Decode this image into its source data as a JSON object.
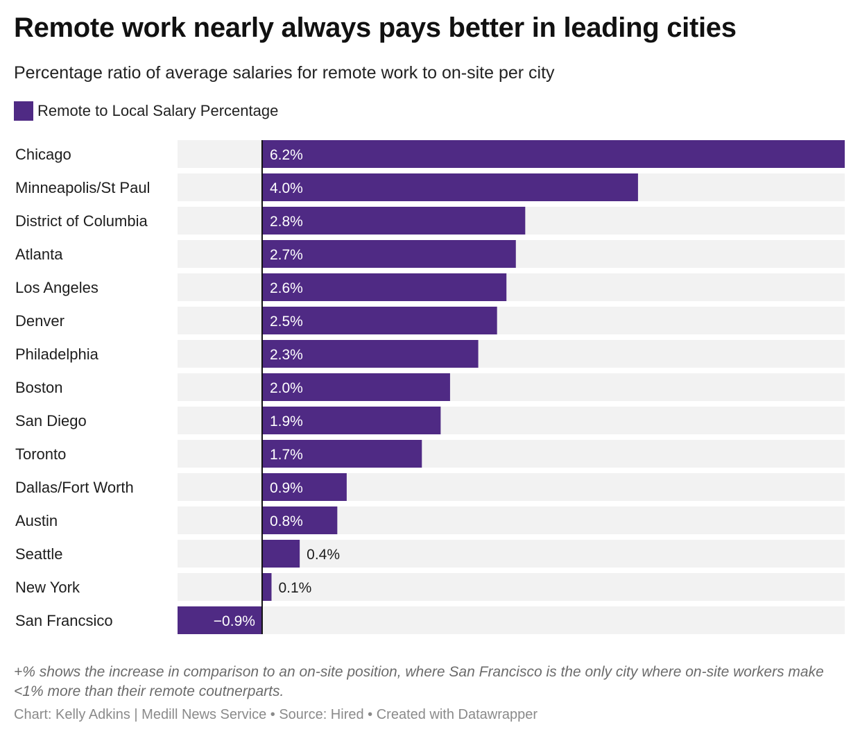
{
  "title": "Remote work nearly always pays better in leading cities",
  "subtitle": "Percentage ratio of average salaries for remote work to on-site per city",
  "colors": {
    "bar": "#4f2a84",
    "track": "#f2f2f2",
    "axis": "#111111"
  },
  "chart_data": {
    "type": "bar",
    "orientation": "horizontal",
    "legend": {
      "position": "top-left",
      "entries": [
        "Remote to Local Salary Percentage"
      ]
    },
    "categories": [
      "Chicago",
      "Minneapolis/St Paul",
      "District of Columbia",
      "Atlanta",
      "Los Angeles",
      "Denver",
      "Philadelphia",
      "Boston",
      "San Diego",
      "Toronto",
      "Dallas/Fort Worth",
      "Austin",
      "Seattle",
      "New York",
      "San Francsico"
    ],
    "series": [
      {
        "name": "Remote to Local Salary Percentage",
        "values": [
          6.2,
          4.0,
          2.8,
          2.7,
          2.6,
          2.5,
          2.3,
          2.0,
          1.9,
          1.7,
          0.9,
          0.8,
          0.4,
          0.1,
          -0.9
        ]
      }
    ],
    "value_labels": [
      "6.2%",
      "4.0%",
      "2.8%",
      "2.7%",
      "2.6%",
      "2.5%",
      "2.3%",
      "2.0%",
      "1.9%",
      "1.7%",
      "0.9%",
      "0.8%",
      "0.4%",
      "0.1%",
      "−0.9%"
    ],
    "xlim": [
      -0.9,
      6.2
    ],
    "grid": false
  },
  "note": "+% shows the increase in comparison to an on-site position, where San Francisco is the only city where on-site workers make <1% more than their remote coutnerparts.",
  "footer": "Chart: Kelly Adkins | Medill News Service • Source: Hired • Created with Datawrapper"
}
